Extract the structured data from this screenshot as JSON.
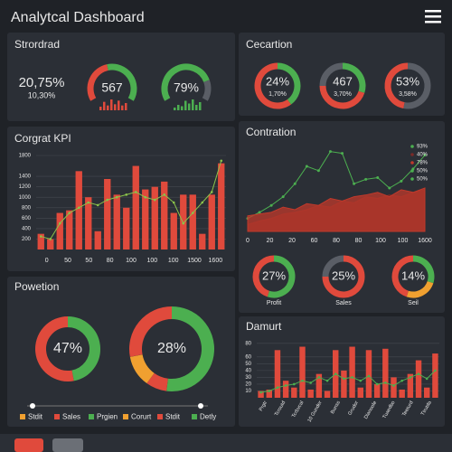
{
  "header": {
    "title": "Analytcal Dashboard"
  },
  "strordrad": {
    "title": "Strordrad",
    "stat": "20,75%",
    "substat": "10,30%",
    "gauges": [
      {
        "label": "567",
        "fill": 45,
        "color": "#e04a3c",
        "rest_color": "#4caf50",
        "bar_color": "#e04a3c",
        "bars": [
          3,
          7,
          4,
          9,
          5,
          8,
          4,
          6
        ]
      },
      {
        "label": "79%",
        "fill": 79,
        "color": "#4caf50",
        "rest_color": "#5a5e66",
        "bar_color": "#4caf50",
        "bars": [
          2,
          4,
          3,
          7,
          5,
          8,
          4,
          6
        ]
      }
    ]
  },
  "cecartion": {
    "title": "Cecartion",
    "donuts": [
      {
        "label": "24%",
        "sub": "1,70%",
        "segments": [
          {
            "value": 40,
            "color": "#4caf50"
          },
          {
            "value": 60,
            "color": "#e04a3c"
          }
        ]
      },
      {
        "label": "467",
        "sub": "3,70%",
        "segments": [
          {
            "value": 30,
            "color": "#4caf50"
          },
          {
            "value": 45,
            "color": "#e04a3c"
          },
          {
            "value": 25,
            "color": "#5a5e66"
          }
        ]
      },
      {
        "label": "53%",
        "sub": "3,58%",
        "segments": [
          {
            "value": 53,
            "color": "#5a5e66"
          },
          {
            "value": 47,
            "color": "#e04a3c"
          }
        ]
      }
    ]
  },
  "corgrat": {
    "title": "Corgrat KPI",
    "type": "bar",
    "color": "#e04a3c",
    "line_color": "#8bc34a",
    "ylim": [
      0,
      1800
    ],
    "yticks": [
      200,
      400,
      600,
      800,
      1000,
      1200,
      1400,
      1800
    ],
    "values": [
      300,
      200,
      700,
      750,
      1500,
      1000,
      350,
      1350,
      1050,
      800,
      1600,
      1150,
      1200,
      1300,
      700,
      1050,
      1050,
      300,
      1050,
      1650
    ],
    "line": [
      250,
      200,
      500,
      700,
      800,
      900,
      850,
      950,
      1000,
      1050,
      1100,
      1000,
      950,
      1050,
      900,
      500,
      700,
      900,
      1100,
      1700
    ],
    "xlabels": [
      "0",
      "50",
      "50",
      "80",
      "100",
      "100",
      "100",
      "1500",
      "1600"
    ]
  },
  "contration": {
    "title": "Contration",
    "type": "area",
    "ylim": [
      0,
      100
    ],
    "series": [
      {
        "name": "93%",
        "color": "#4caf50",
        "values": [
          15,
          22,
          30,
          40,
          55,
          75,
          70,
          92,
          90,
          55,
          60,
          62,
          50,
          58,
          72,
          88
        ]
      },
      {
        "name": "40%",
        "color": "#7a2a28",
        "values": [
          8,
          12,
          15,
          20,
          22,
          25,
          30,
          28,
          35,
          33,
          40,
          38,
          42,
          40,
          45,
          48
        ]
      },
      {
        "name": "78%",
        "color": "#c0392b",
        "values": [
          18,
          20,
          22,
          28,
          25,
          32,
          30,
          38,
          35,
          40,
          42,
          45,
          40,
          48,
          45,
          50
        ]
      }
    ],
    "legend_extra": [
      "50%",
      "50%"
    ],
    "xlabels": [
      "0",
      "20",
      "20",
      "60",
      "80",
      "80",
      "100",
      "100",
      "1600"
    ],
    "donuts": [
      {
        "label": "27%",
        "name": "Profit",
        "segments": [
          {
            "value": 55,
            "color": "#4caf50"
          },
          {
            "value": 45,
            "color": "#e04a3c"
          }
        ]
      },
      {
        "label": "25%",
        "name": "Sales",
        "segments": [
          {
            "value": 75,
            "color": "#e04a3c"
          },
          {
            "value": 25,
            "color": "#5a5e66"
          }
        ]
      },
      {
        "label": "14%",
        "name": "Seil",
        "segments": [
          {
            "value": 30,
            "color": "#4caf50"
          },
          {
            "value": 25,
            "color": "#f0a030"
          },
          {
            "value": 45,
            "color": "#e04a3c"
          }
        ]
      }
    ]
  },
  "powetion": {
    "title": "Powetion",
    "donuts": [
      {
        "label": "47%",
        "segments": [
          {
            "value": 47,
            "color": "#4caf50"
          },
          {
            "value": 53,
            "color": "#e04a3c"
          }
        ]
      },
      {
        "label": "28%",
        "segments": [
          {
            "value": 52,
            "color": "#4caf50"
          },
          {
            "value": 8,
            "color": "#e04a3c"
          },
          {
            "value": 12,
            "color": "#f0a030"
          },
          {
            "value": 28,
            "color": "#e04a3c"
          }
        ]
      }
    ],
    "legend": [
      {
        "name": "Stdit",
        "color": "#f0a030"
      },
      {
        "name": "Sales",
        "color": "#e04a3c"
      },
      {
        "name": "Prgien",
        "color": "#4caf50"
      },
      {
        "name": "Corurt",
        "color": "#f0a030"
      },
      {
        "name": "Stdit",
        "color": "#e04a3c"
      },
      {
        "name": "Detly",
        "color": "#4caf50"
      }
    ]
  },
  "damurt": {
    "title": "Damurt",
    "type": "bar",
    "color": "#e04a3c",
    "line_color": "#4caf50",
    "ylim": [
      0,
      85
    ],
    "yticks": [
      10,
      20,
      30,
      40,
      50,
      60,
      80
    ],
    "values": [
      10,
      12,
      70,
      25,
      15,
      75,
      12,
      35,
      10,
      70,
      40,
      75,
      15,
      70,
      20,
      72,
      30,
      12,
      35,
      55,
      15,
      65
    ],
    "line": [
      8,
      10,
      15,
      18,
      20,
      25,
      22,
      30,
      25,
      35,
      28,
      30,
      25,
      32,
      20,
      22,
      18,
      25,
      30,
      35,
      28,
      40
    ],
    "xlabels": [
      "Prgtr",
      "Tcroutd",
      "Tcrbvcal",
      "10 Gunder",
      "Bunss",
      "Grudor",
      "Dianoofe",
      "Tuaedbo",
      "Teeturd",
      "Ttrutda"
    ]
  }
}
